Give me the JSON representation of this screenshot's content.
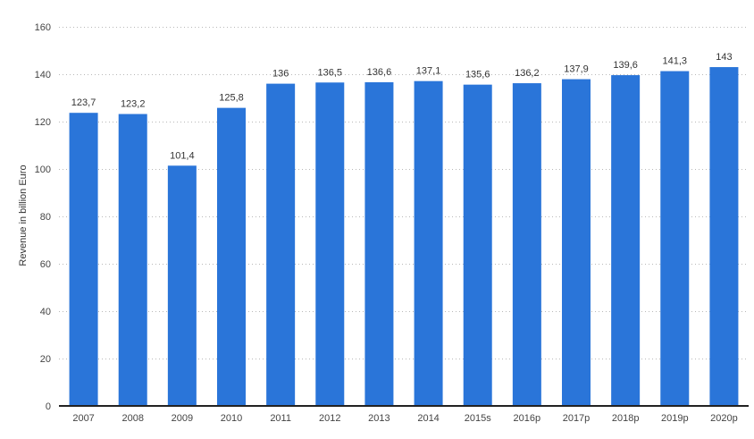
{
  "chart_data": {
    "type": "bar",
    "title": "",
    "xlabel": "",
    "ylabel": "Revenue in billion Euro",
    "ylim": [
      0,
      160
    ],
    "yticks": [
      0,
      20,
      40,
      60,
      80,
      100,
      120,
      140,
      160
    ],
    "categories": [
      "2007",
      "2008",
      "2009",
      "2010",
      "2011",
      "2012",
      "2013",
      "2014",
      "2015s",
      "2016p",
      "2017p",
      "2018p",
      "2019p",
      "2020p"
    ],
    "values": [
      123.7,
      123.2,
      101.4,
      125.8,
      136,
      136.5,
      136.6,
      137.1,
      135.6,
      136.2,
      137.9,
      139.6,
      141.3,
      143
    ],
    "value_labels": [
      "123,7",
      "123,2",
      "101,4",
      "125,8",
      "136",
      "136,5",
      "136,6",
      "137,1",
      "135,6",
      "136,2",
      "137,9",
      "139,6",
      "141,3",
      "143"
    ],
    "grid": true,
    "legend": "none",
    "bar_color": "#2a75d9"
  }
}
